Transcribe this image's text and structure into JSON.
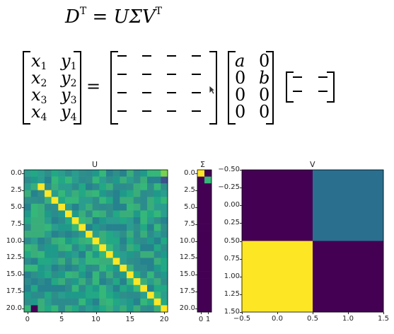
{
  "equation": {
    "lhs": "D",
    "lhs_sup": "T",
    "equals": "=",
    "rhs": "UΣV",
    "rhs_sup": "T"
  },
  "matrix_equation": {
    "data_matrix": [
      [
        {
          "v": "x",
          "s": "1"
        },
        {
          "v": "y",
          "s": "1"
        }
      ],
      [
        {
          "v": "x",
          "s": "2"
        },
        {
          "v": "y",
          "s": "2"
        }
      ],
      [
        {
          "v": "x",
          "s": "3"
        },
        {
          "v": "y",
          "s": "3"
        }
      ],
      [
        {
          "v": "x",
          "s": "4"
        },
        {
          "v": "y",
          "s": "4"
        }
      ]
    ],
    "equals": "=",
    "sigma_matrix": [
      [
        "a",
        "0"
      ],
      [
        "0",
        "b"
      ],
      [
        "0",
        "0"
      ],
      [
        "0",
        "0"
      ]
    ]
  },
  "chart_data": [
    {
      "type": "heatmap",
      "title": "U",
      "xticks": [
        "0",
        "5",
        "10",
        "15",
        "20"
      ],
      "yticks": [
        "0.0",
        "2.5",
        "5.0",
        "7.5",
        "10.0",
        "12.5",
        "15.0",
        "17.5",
        "20.0"
      ],
      "colors": {
        "low": "#440154",
        "mid": "#21918c",
        "high": "#fde725"
      },
      "pattern": "diagonal band of high values from row 2 to row 20 on a mid-value background"
    },
    {
      "type": "heatmap",
      "title": "Σ",
      "xticks": [
        "0",
        "1"
      ],
      "yticks": [
        "0.0",
        "2.5",
        "5.0",
        "7.5",
        "10.0",
        "12.5",
        "15.0",
        "17.5",
        "20.0"
      ],
      "values_top": [
        [
          "high",
          "low"
        ],
        [
          "low",
          "mid-high"
        ]
      ]
    },
    {
      "type": "heatmap",
      "title": "V",
      "xticks": [
        "−0.5",
        "0.0",
        "0.5",
        "1.0",
        "1.5"
      ],
      "yticks": [
        "−0.50",
        "−0.25",
        "0.00",
        "0.25",
        "0.50",
        "0.75",
        "1.00",
        "1.25",
        "1.50"
      ],
      "values": [
        [
          "low",
          "mid"
        ],
        [
          "high",
          "low"
        ]
      ],
      "colors": {
        "low": "#440154",
        "mid": "#2a6f8e",
        "high": "#fde725"
      }
    }
  ]
}
